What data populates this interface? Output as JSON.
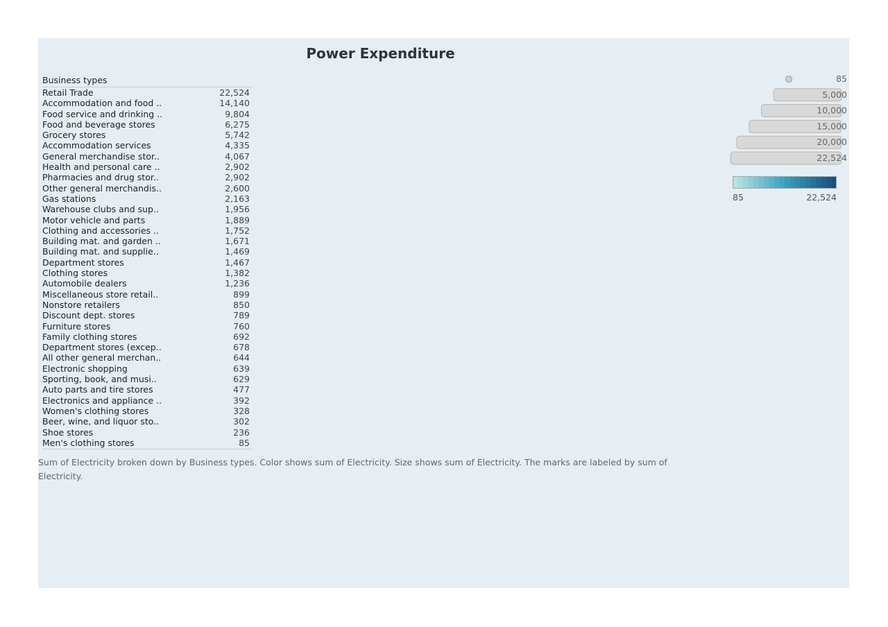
{
  "title": "Power Expenditure",
  "table": {
    "header": "Business types"
  },
  "caption": "Sum of Electricity broken down by Business types.  Color shows sum of Electricity.  Size shows sum of Electricity.  The marks are labeled by sum of Electricity.",
  "colors": {
    "panel_bg": "#e6eef4",
    "color_low": "#b7e3e0",
    "color_mid": "#3aa0c2",
    "color_high": "#1d4d7d",
    "size_mark": "#d8d8d8"
  },
  "chart_data": {
    "type": "table",
    "title": "Power Expenditure",
    "categories": [
      "Retail Trade",
      "Accommodation and food ..",
      "Food service and drinking ..",
      "Food and beverage stores",
      "Grocery stores",
      "Accommodation services",
      "General merchandise stor..",
      "Health and personal care ..",
      "Pharmacies and drug stor..",
      "Other general merchandis..",
      "Gas stations",
      "Warehouse clubs and sup..",
      "Motor vehicle and parts",
      "Clothing and accessories ..",
      "Building mat. and garden ..",
      "Building mat. and supplie..",
      "Department stores",
      "Clothing stores",
      "Automobile dealers",
      "Miscellaneous store retail..",
      "Nonstore retailers",
      "Discount dept. stores",
      "Furniture stores",
      "Family clothing stores",
      "Department stores (excep..",
      "All other general merchan..",
      "Electronic shopping",
      "Sporting, book, and  musi..",
      "Auto parts and tire stores",
      "Electronics and appliance ..",
      "Women's clothing stores",
      "Beer, wine, and liquor sto..",
      "Shoe stores",
      "Men's clothing stores"
    ],
    "values": [
      22524,
      14140,
      9804,
      6275,
      5742,
      4335,
      4067,
      2902,
      2902,
      2600,
      2163,
      1956,
      1889,
      1752,
      1671,
      1469,
      1467,
      1382,
      1236,
      899,
      850,
      789,
      760,
      692,
      678,
      644,
      639,
      629,
      477,
      392,
      328,
      302,
      236,
      85
    ],
    "value_labels": [
      "22,524",
      "14,140",
      "9,804",
      "6,275",
      "5,742",
      "4,335",
      "4,067",
      "2,902",
      "2,902",
      "2,600",
      "2,163",
      "1,956",
      "1,889",
      "1,752",
      "1,671",
      "1,469",
      "1,467",
      "1,382",
      "1,236",
      "899",
      "850",
      "789",
      "760",
      "692",
      "678",
      "644",
      "639",
      "629",
      "477",
      "392",
      "328",
      "302",
      "236",
      "85"
    ],
    "size_legend": {
      "values": [
        85,
        5000,
        10000,
        15000,
        20000,
        22524
      ],
      "labels": [
        "85",
        "5,000",
        "10,000",
        "15,000",
        "20,000",
        "22,524"
      ]
    },
    "color_legend": {
      "min": 85,
      "max": 22524,
      "min_label": "85",
      "max_label": "22,524"
    }
  }
}
